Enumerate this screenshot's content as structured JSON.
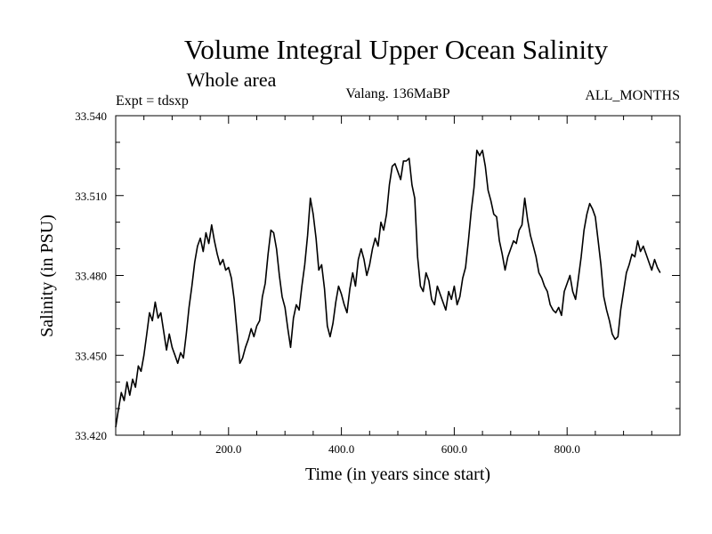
{
  "chart_data": {
    "type": "line",
    "title": "Volume Integral Upper Ocean Salinity",
    "subtitle": "Whole area",
    "expt_label": "Expt = tdsxp",
    "run_label": "Valang. 136MaBP",
    "months_label": "ALL_MONTHS",
    "xlabel": "Time (in years since start)",
    "ylabel": "Salinity (in PSU)",
    "xlim": [
      0,
      1000
    ],
    "ylim": [
      33.42,
      33.54
    ],
    "x_ticks": [
      200,
      400,
      600,
      800
    ],
    "x_tick_labels": [
      "200.0",
      "400.0",
      "600.0",
      "800.0"
    ],
    "y_ticks": [
      33.42,
      33.45,
      33.48,
      33.51,
      33.54
    ],
    "y_tick_labels": [
      "33.420",
      "33.450",
      "33.480",
      "33.510",
      "33.540"
    ],
    "grid": false,
    "series": [
      {
        "name": "Salinity",
        "points": [
          [
            0,
            33.423
          ],
          [
            5,
            33.43
          ],
          [
            10,
            33.436
          ],
          [
            15,
            33.433
          ],
          [
            20,
            33.44
          ],
          [
            25,
            33.435
          ],
          [
            30,
            33.441
          ],
          [
            35,
            33.438
          ],
          [
            40,
            33.446
          ],
          [
            45,
            33.444
          ],
          [
            50,
            33.45
          ],
          [
            55,
            33.458
          ],
          [
            60,
            33.466
          ],
          [
            65,
            33.463
          ],
          [
            70,
            33.47
          ],
          [
            75,
            33.464
          ],
          [
            80,
            33.466
          ],
          [
            85,
            33.459
          ],
          [
            90,
            33.452
          ],
          [
            95,
            33.458
          ],
          [
            100,
            33.453
          ],
          [
            105,
            33.45
          ],
          [
            110,
            33.447
          ],
          [
            115,
            33.451
          ],
          [
            120,
            33.449
          ],
          [
            125,
            33.458
          ],
          [
            130,
            33.468
          ],
          [
            135,
            33.476
          ],
          [
            140,
            33.485
          ],
          [
            145,
            33.491
          ],
          [
            150,
            33.494
          ],
          [
            155,
            33.489
          ],
          [
            160,
            33.496
          ],
          [
            165,
            33.492
          ],
          [
            170,
            33.499
          ],
          [
            175,
            33.493
          ],
          [
            180,
            33.488
          ],
          [
            185,
            33.484
          ],
          [
            190,
            33.486
          ],
          [
            195,
            33.482
          ],
          [
            200,
            33.483
          ],
          [
            205,
            33.479
          ],
          [
            210,
            33.471
          ],
          [
            215,
            33.459
          ],
          [
            220,
            33.447
          ],
          [
            225,
            33.449
          ],
          [
            230,
            33.453
          ],
          [
            235,
            33.456
          ],
          [
            240,
            33.46
          ],
          [
            245,
            33.457
          ],
          [
            250,
            33.461
          ],
          [
            255,
            33.463
          ],
          [
            260,
            33.472
          ],
          [
            265,
            33.477
          ],
          [
            270,
            33.488
          ],
          [
            275,
            33.497
          ],
          [
            280,
            33.496
          ],
          [
            285,
            33.49
          ],
          [
            290,
            33.48
          ],
          [
            295,
            33.472
          ],
          [
            300,
            33.468
          ],
          [
            305,
            33.46
          ],
          [
            310,
            33.453
          ],
          [
            315,
            33.464
          ],
          [
            320,
            33.469
          ],
          [
            325,
            33.467
          ],
          [
            330,
            33.476
          ],
          [
            335,
            33.484
          ],
          [
            340,
            33.495
          ],
          [
            345,
            33.509
          ],
          [
            350,
            33.503
          ],
          [
            355,
            33.494
          ],
          [
            360,
            33.482
          ],
          [
            365,
            33.484
          ],
          [
            370,
            33.475
          ],
          [
            375,
            33.461
          ],
          [
            380,
            33.457
          ],
          [
            385,
            33.462
          ],
          [
            390,
            33.47
          ],
          [
            395,
            33.476
          ],
          [
            400,
            33.473
          ],
          [
            405,
            33.469
          ],
          [
            410,
            33.466
          ],
          [
            415,
            33.475
          ],
          [
            420,
            33.481
          ],
          [
            425,
            33.476
          ],
          [
            430,
            33.486
          ],
          [
            435,
            33.49
          ],
          [
            440,
            33.486
          ],
          [
            445,
            33.48
          ],
          [
            450,
            33.484
          ],
          [
            455,
            33.49
          ],
          [
            460,
            33.494
          ],
          [
            465,
            33.491
          ],
          [
            470,
            33.5
          ],
          [
            475,
            33.497
          ],
          [
            480,
            33.503
          ],
          [
            485,
            33.514
          ],
          [
            490,
            33.521
          ],
          [
            495,
            33.522
          ],
          [
            500,
            33.519
          ],
          [
            505,
            33.516
          ],
          [
            510,
            33.523
          ],
          [
            515,
            33.523
          ],
          [
            520,
            33.524
          ],
          [
            525,
            33.514
          ],
          [
            530,
            33.509
          ],
          [
            535,
            33.487
          ],
          [
            540,
            33.476
          ],
          [
            545,
            33.474
          ],
          [
            550,
            33.481
          ],
          [
            555,
            33.478
          ],
          [
            560,
            33.471
          ],
          [
            565,
            33.469
          ],
          [
            570,
            33.476
          ],
          [
            575,
            33.473
          ],
          [
            580,
            33.47
          ],
          [
            585,
            33.467
          ],
          [
            590,
            33.474
          ],
          [
            595,
            33.471
          ],
          [
            600,
            33.476
          ],
          [
            605,
            33.469
          ],
          [
            610,
            33.472
          ],
          [
            615,
            33.479
          ],
          [
            620,
            33.483
          ],
          [
            625,
            33.493
          ],
          [
            630,
            33.504
          ],
          [
            635,
            33.513
          ],
          [
            640,
            33.527
          ],
          [
            645,
            33.525
          ],
          [
            650,
            33.527
          ],
          [
            655,
            33.521
          ],
          [
            660,
            33.512
          ],
          [
            665,
            33.508
          ],
          [
            670,
            33.503
          ],
          [
            675,
            33.502
          ],
          [
            680,
            33.493
          ],
          [
            685,
            33.488
          ],
          [
            690,
            33.482
          ],
          [
            695,
            33.487
          ],
          [
            700,
            33.49
          ],
          [
            705,
            33.493
          ],
          [
            710,
            33.492
          ],
          [
            715,
            33.497
          ],
          [
            720,
            33.499
          ],
          [
            725,
            33.509
          ],
          [
            730,
            33.501
          ],
          [
            735,
            33.495
          ],
          [
            740,
            33.491
          ],
          [
            745,
            33.487
          ],
          [
            750,
            33.481
          ],
          [
            755,
            33.479
          ],
          [
            760,
            33.476
          ],
          [
            765,
            33.474
          ],
          [
            770,
            33.469
          ],
          [
            775,
            33.467
          ],
          [
            780,
            33.466
          ],
          [
            785,
            33.468
          ],
          [
            790,
            33.465
          ],
          [
            795,
            33.474
          ],
          [
            800,
            33.477
          ],
          [
            805,
            33.48
          ],
          [
            810,
            33.474
          ],
          [
            815,
            33.471
          ],
          [
            820,
            33.479
          ],
          [
            825,
            33.487
          ],
          [
            830,
            33.497
          ],
          [
            835,
            33.503
          ],
          [
            840,
            33.507
          ],
          [
            845,
            33.505
          ],
          [
            850,
            33.502
          ],
          [
            855,
            33.493
          ],
          [
            860,
            33.484
          ],
          [
            865,
            33.472
          ],
          [
            870,
            33.467
          ],
          [
            875,
            33.463
          ],
          [
            880,
            33.458
          ],
          [
            885,
            33.456
          ],
          [
            890,
            33.457
          ],
          [
            895,
            33.467
          ],
          [
            900,
            33.474
          ],
          [
            905,
            33.481
          ],
          [
            910,
            33.484
          ],
          [
            915,
            33.488
          ],
          [
            920,
            33.487
          ],
          [
            925,
            33.493
          ],
          [
            930,
            33.489
          ],
          [
            935,
            33.491
          ],
          [
            940,
            33.488
          ],
          [
            945,
            33.485
          ],
          [
            950,
            33.482
          ],
          [
            955,
            33.486
          ],
          [
            960,
            33.483
          ],
          [
            965,
            33.481
          ]
        ]
      }
    ]
  }
}
